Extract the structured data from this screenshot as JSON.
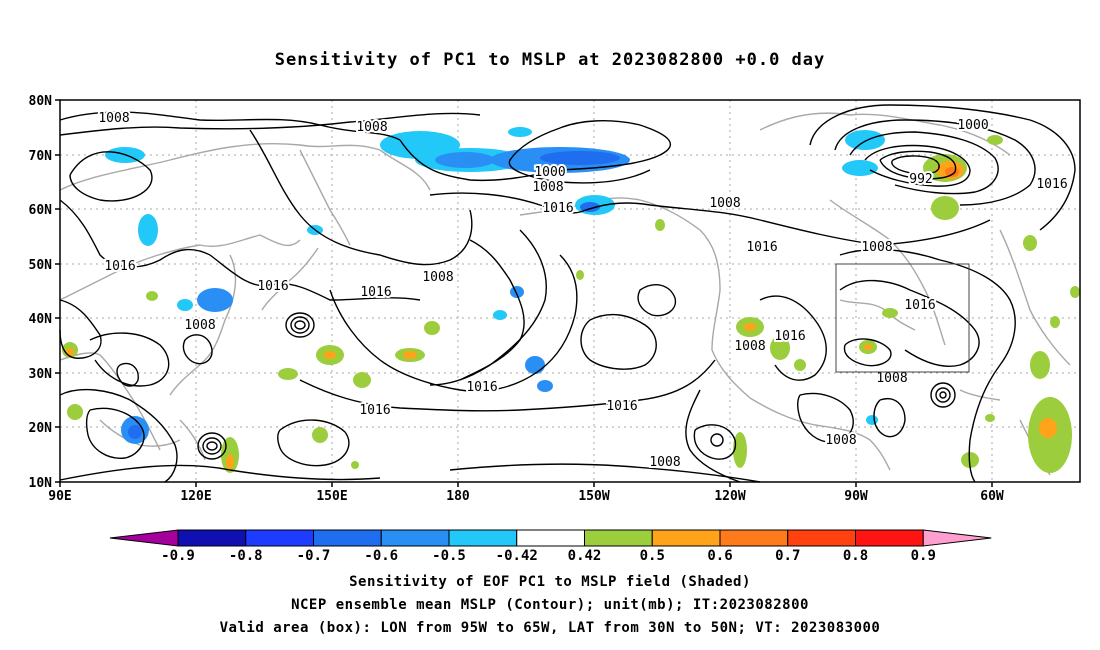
{
  "title": "Sensitivity of PC1 to MSLP at 2023082800 +0.0 day",
  "lat_labels": [
    "80N",
    "70N",
    "60N",
    "50N",
    "40N",
    "30N",
    "20N",
    "10N"
  ],
  "lon_labels": [
    "90E",
    "120E",
    "150E",
    "180",
    "150W",
    "120W",
    "90W",
    "60W"
  ],
  "contour_labels": [
    "1008",
    "1008",
    "1016",
    "1016",
    "1016",
    "1008",
    "1008",
    "1016",
    "1000",
    "1008",
    "1016",
    "1008",
    "1016",
    "1016",
    "1008",
    "1016",
    "1008",
    "1016",
    "1008",
    "1000",
    "992",
    "1016",
    "1008",
    "1016",
    "1016",
    "1008",
    "1008"
  ],
  "colorbar": {
    "labels": [
      "-0.9",
      "-0.8",
      "-0.7",
      "-0.6",
      "-0.5",
      "-0.42",
      "0.42",
      "0.5",
      "0.6",
      "0.7",
      "0.8",
      "0.9"
    ],
    "colors": [
      "#a5009c",
      "#1010b0",
      "#1e3cff",
      "#1f6ef0",
      "#2a8ff5",
      "#22c8f8",
      "#ffffff",
      "#9ccd3c",
      "#ffa31a",
      "#ff7a1a",
      "#ff4210",
      "#ff1414",
      "#ff9fd0"
    ]
  },
  "footer": {
    "line1": "Sensitivity of EOF PC1 to MSLP field (Shaded)",
    "line2": "NCEP ensemble mean MSLP (Contour); unit(mb); IT:2023082800",
    "line3": "Valid area (box): LON from 95W to 65W, LAT from 30N to 50N; VT: 2023083000"
  },
  "valid_box": {
    "lon_west": "95W",
    "lon_east": "65W",
    "lat_south": "30N",
    "lat_north": "50N"
  }
}
